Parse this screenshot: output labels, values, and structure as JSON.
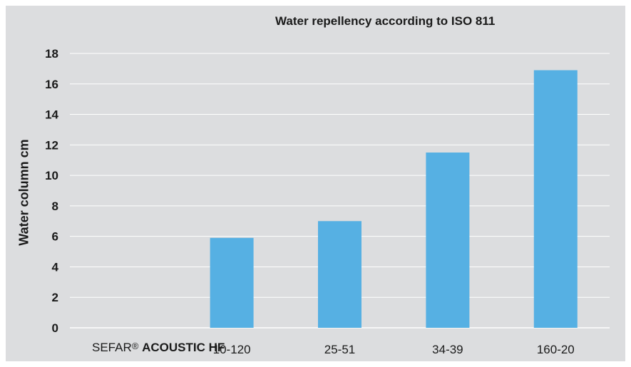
{
  "chart_data": {
    "type": "bar",
    "title": "Water repellency according to ISO 811",
    "ylabel": "Water column cm",
    "xlabel": "",
    "ylim": [
      0,
      18
    ],
    "yticks": [
      0,
      2,
      4,
      6,
      8,
      10,
      12,
      14,
      16,
      18
    ],
    "grid": true,
    "categories": [
      "SEFAR® ACOUSTIC HF",
      "10-120",
      "25-51",
      "34-39",
      "160-20"
    ],
    "values": [
      null,
      5.9,
      7.0,
      11.5,
      16.9
    ],
    "bar_color": "#56b0e3"
  },
  "product_label": {
    "brand": "SEFAR",
    "reg_mark": "®",
    "name": "ACOUSTIC HF"
  }
}
